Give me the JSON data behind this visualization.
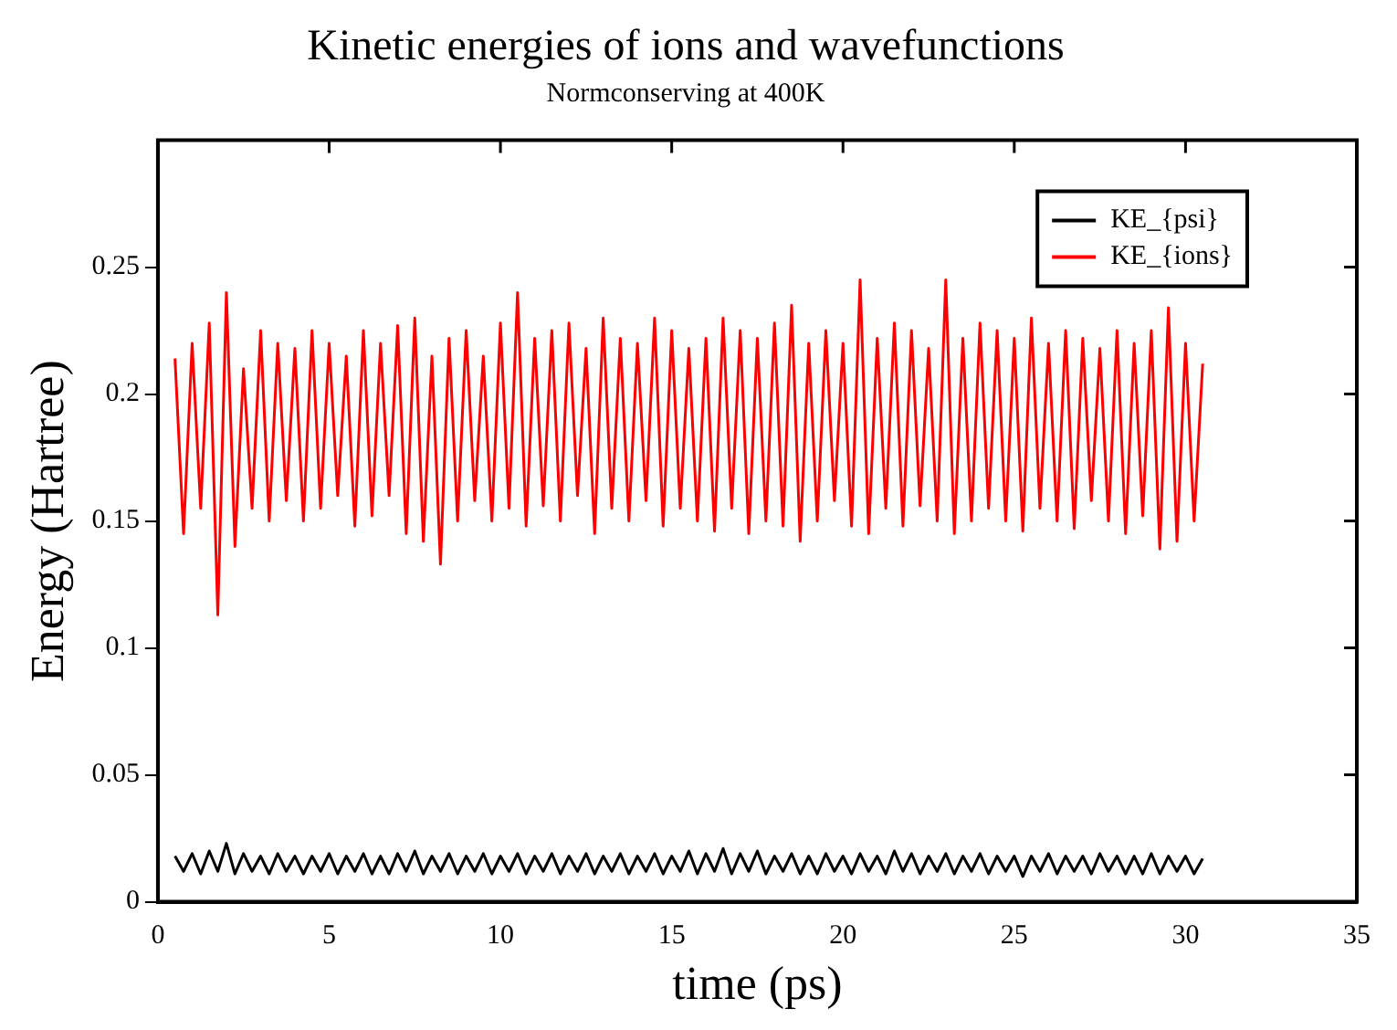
{
  "chart_data": {
    "type": "line",
    "title": "Kinetic energies of ions and wavefunctions",
    "subtitle": "Normconserving at 400K",
    "xlabel": "time (ps)",
    "ylabel": "Energy (Hartree)",
    "x": [
      0.5,
      0.75,
      1,
      1.25,
      1.5,
      1.75,
      2,
      2.25,
      2.5,
      2.75,
      3,
      3.25,
      3.5,
      3.75,
      4,
      4.25,
      4.5,
      4.75,
      5,
      5.25,
      5.5,
      5.75,
      6,
      6.25,
      6.5,
      6.75,
      7,
      7.25,
      7.5,
      7.75,
      8,
      8.25,
      8.5,
      8.75,
      9,
      9.25,
      9.5,
      9.75,
      10,
      10.25,
      10.5,
      10.75,
      11,
      11.25,
      11.5,
      11.75,
      12,
      12.25,
      12.5,
      12.75,
      13,
      13.25,
      13.5,
      13.75,
      14,
      14.25,
      14.5,
      14.75,
      15,
      15.25,
      15.5,
      15.75,
      16,
      16.25,
      16.5,
      16.75,
      17,
      17.25,
      17.5,
      17.75,
      18,
      18.25,
      18.5,
      18.75,
      19,
      19.25,
      19.5,
      19.75,
      20,
      20.25,
      20.5,
      20.75,
      21,
      21.25,
      21.5,
      21.75,
      22,
      22.25,
      22.5,
      22.75,
      23,
      23.25,
      23.5,
      23.75,
      24,
      24.25,
      24.5,
      24.75,
      25,
      25.25,
      25.5,
      25.75,
      26,
      26.25,
      26.5,
      26.75,
      27,
      27.25,
      27.5,
      27.75,
      28,
      28.25,
      28.5,
      28.75,
      29,
      29.25,
      29.5,
      29.75,
      30,
      30.25,
      30.5
    ],
    "series": [
      {
        "name": "KE_{psi}",
        "color": "#000000",
        "values": [
          0.018,
          0.012,
          0.019,
          0.011,
          0.02,
          0.012,
          0.023,
          0.011,
          0.019,
          0.012,
          0.018,
          0.011,
          0.019,
          0.012,
          0.018,
          0.011,
          0.018,
          0.012,
          0.019,
          0.011,
          0.018,
          0.012,
          0.019,
          0.011,
          0.018,
          0.011,
          0.019,
          0.012,
          0.02,
          0.011,
          0.018,
          0.012,
          0.019,
          0.011,
          0.018,
          0.012,
          0.019,
          0.011,
          0.018,
          0.012,
          0.019,
          0.011,
          0.018,
          0.012,
          0.019,
          0.011,
          0.018,
          0.012,
          0.019,
          0.011,
          0.018,
          0.012,
          0.019,
          0.011,
          0.018,
          0.012,
          0.019,
          0.011,
          0.018,
          0.012,
          0.02,
          0.011,
          0.019,
          0.012,
          0.021,
          0.011,
          0.019,
          0.012,
          0.02,
          0.011,
          0.018,
          0.012,
          0.019,
          0.011,
          0.018,
          0.011,
          0.019,
          0.012,
          0.018,
          0.011,
          0.019,
          0.012,
          0.018,
          0.011,
          0.02,
          0.012,
          0.019,
          0.011,
          0.018,
          0.012,
          0.019,
          0.011,
          0.018,
          0.012,
          0.019,
          0.011,
          0.018,
          0.012,
          0.018,
          0.01,
          0.018,
          0.012,
          0.019,
          0.011,
          0.018,
          0.012,
          0.018,
          0.011,
          0.019,
          0.012,
          0.018,
          0.011,
          0.018,
          0.011,
          0.019,
          0.011,
          0.018,
          0.012,
          0.018,
          0.011,
          0.017
        ]
      },
      {
        "name": "KE_{ions}",
        "color": "#ff0000",
        "values": [
          0.214,
          0.145,
          0.22,
          0.155,
          0.228,
          0.113,
          0.24,
          0.14,
          0.21,
          0.155,
          0.225,
          0.15,
          0.22,
          0.158,
          0.218,
          0.15,
          0.225,
          0.155,
          0.22,
          0.16,
          0.215,
          0.148,
          0.225,
          0.152,
          0.22,
          0.16,
          0.227,
          0.145,
          0.23,
          0.142,
          0.215,
          0.133,
          0.222,
          0.15,
          0.225,
          0.158,
          0.215,
          0.15,
          0.228,
          0.155,
          0.24,
          0.148,
          0.222,
          0.156,
          0.225,
          0.15,
          0.228,
          0.16,
          0.218,
          0.145,
          0.23,
          0.155,
          0.222,
          0.15,
          0.22,
          0.158,
          0.23,
          0.148,
          0.225,
          0.155,
          0.218,
          0.15,
          0.222,
          0.146,
          0.23,
          0.155,
          0.225,
          0.145,
          0.222,
          0.15,
          0.228,
          0.148,
          0.235,
          0.142,
          0.22,
          0.15,
          0.225,
          0.158,
          0.22,
          0.148,
          0.245,
          0.145,
          0.222,
          0.155,
          0.228,
          0.148,
          0.225,
          0.156,
          0.218,
          0.15,
          0.245,
          0.145,
          0.222,
          0.15,
          0.228,
          0.155,
          0.225,
          0.15,
          0.222,
          0.146,
          0.23,
          0.155,
          0.22,
          0.15,
          0.225,
          0.147,
          0.222,
          0.158,
          0.218,
          0.15,
          0.225,
          0.145,
          0.22,
          0.152,
          0.225,
          0.139,
          0.234,
          0.142,
          0.22,
          0.15,
          0.212
        ]
      }
    ],
    "xlim": [
      0,
      35
    ],
    "xticks": [
      0,
      5,
      10,
      15,
      20,
      25,
      30,
      35
    ],
    "ylim": [
      0,
      0.3
    ],
    "yticks": [
      0,
      0.05,
      0.1,
      0.15,
      0.2,
      0.25
    ],
    "grid": false,
    "legend": "top right",
    "marker": "none",
    "line_style": "solid"
  }
}
